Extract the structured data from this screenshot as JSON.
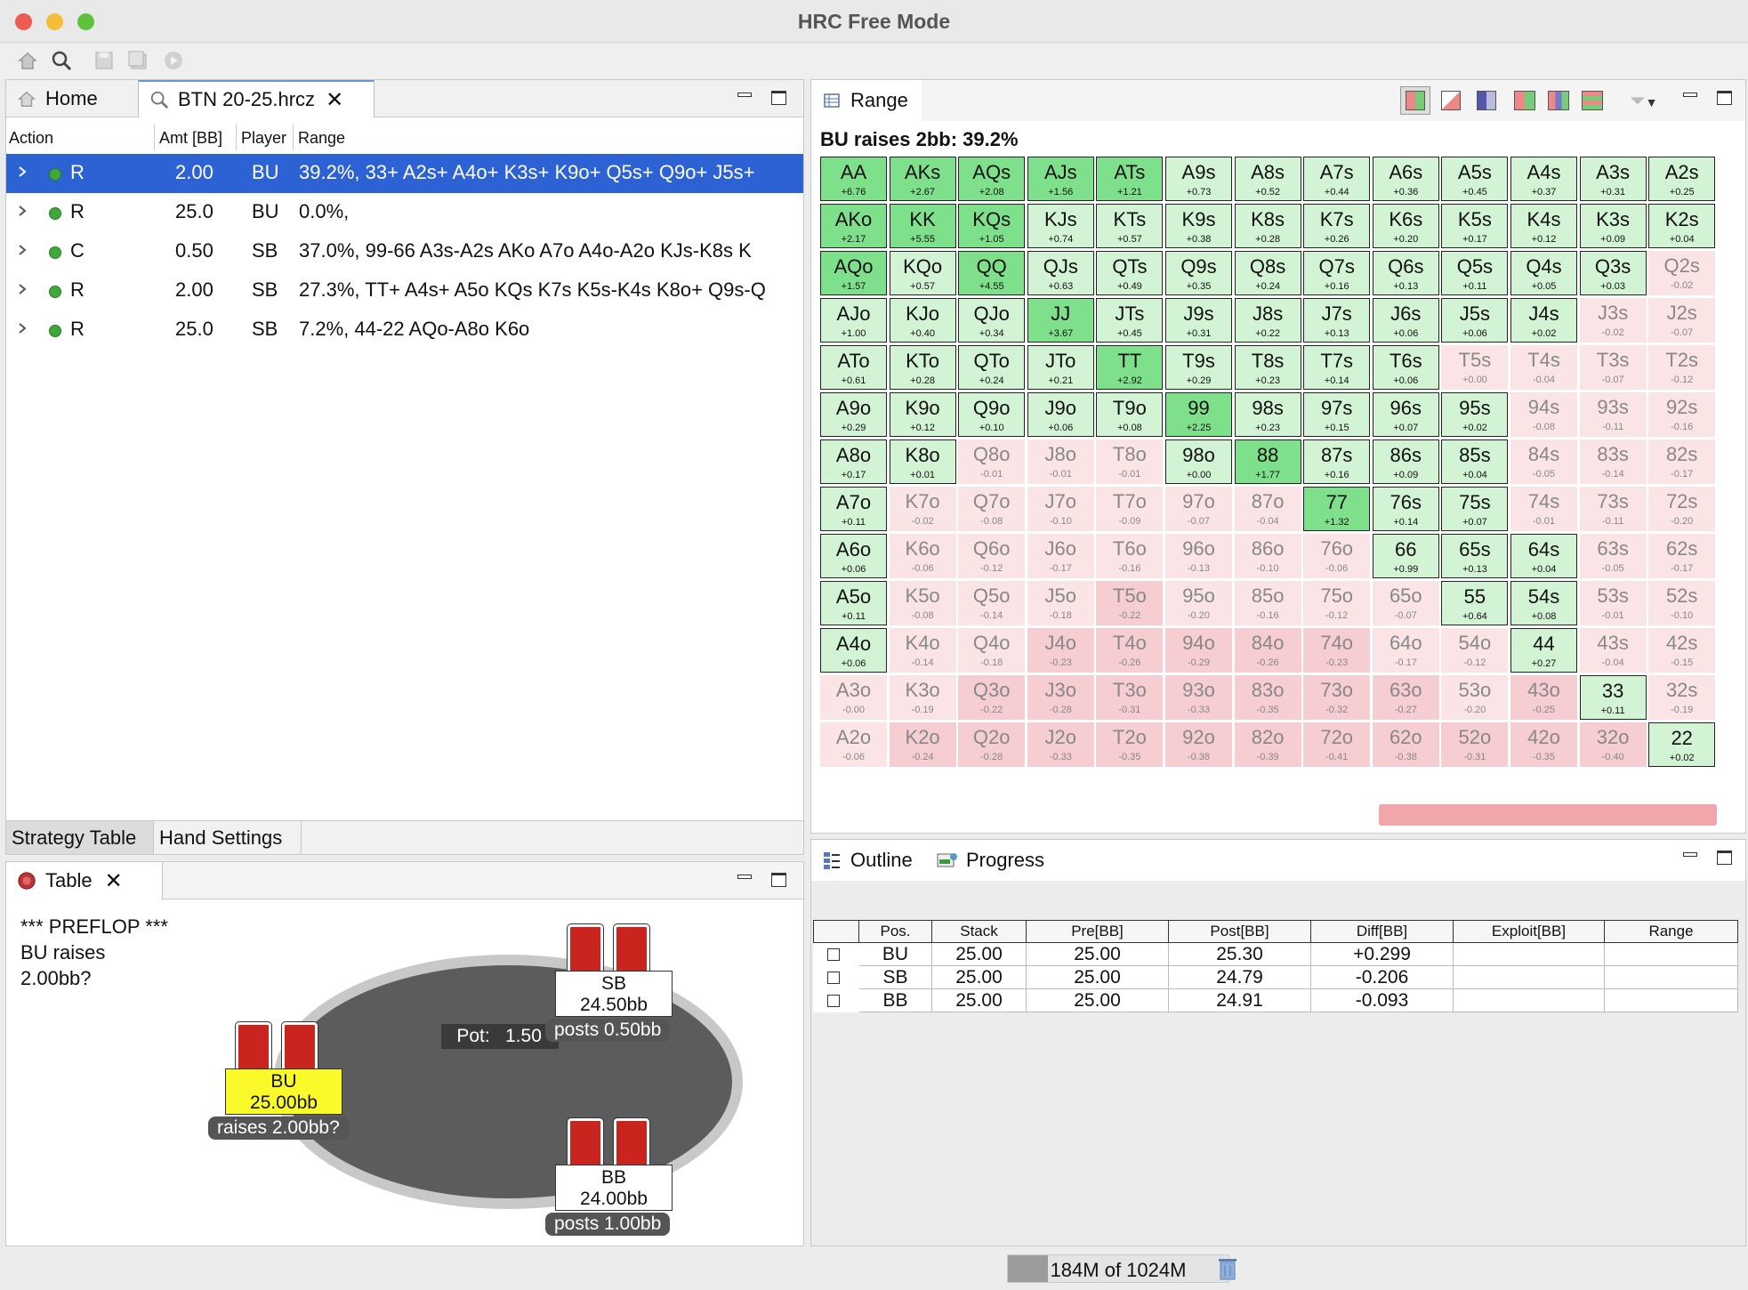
{
  "window": {
    "title": "HRC Free Mode"
  },
  "top_left_pane": {
    "tabs": [
      {
        "label": "Home"
      },
      {
        "label": "BTN 20-25.hrcz"
      }
    ],
    "columns": [
      "Action",
      "Amt [BB]",
      "Player",
      "Range"
    ],
    "rows": [
      {
        "action": "R",
        "amt": "2.00",
        "player": "BU",
        "range": "39.2%, 33+ A2s+ A4o+ K3s+ K9o+ Q5s+ Q9o+ J5s+",
        "selected": true
      },
      {
        "action": "R",
        "amt": "25.0",
        "player": "BU",
        "range": "0.0%,",
        "selected": false
      },
      {
        "action": "C",
        "amt": "0.50",
        "player": "SB",
        "range": "37.0%, 99-66 A3s-A2s AKo A7o A4o-A2o KJs-K8s K",
        "selected": false
      },
      {
        "action": "R",
        "amt": "2.00",
        "player": "SB",
        "range": "27.3%, TT+ A4s+ A5o KQs K7s K5s-K4s K8o+ Q9s-Q",
        "selected": false
      },
      {
        "action": "R",
        "amt": "25.0",
        "player": "SB",
        "range": "7.2%, 44-22 AQo-A8o K6o",
        "selected": false
      }
    ],
    "bottom_tabs": [
      "Strategy Table",
      "Hand Settings"
    ]
  },
  "range_pane": {
    "tab": "Range",
    "headline": "BU raises 2bb: 39.2%",
    "hands": [
      [
        "AA",
        "AKs",
        "AQs",
        "AJs",
        "ATs",
        "A9s",
        "A8s",
        "A7s",
        "A6s",
        "A5s",
        "A4s",
        "A3s",
        "A2s"
      ],
      [
        "AKo",
        "KK",
        "KQs",
        "KJs",
        "KTs",
        "K9s",
        "K8s",
        "K7s",
        "K6s",
        "K5s",
        "K4s",
        "K3s",
        "K2s"
      ],
      [
        "AQo",
        "KQo",
        "QQ",
        "QJs",
        "QTs",
        "Q9s",
        "Q8s",
        "Q7s",
        "Q6s",
        "Q5s",
        "Q4s",
        "Q3s",
        "Q2s"
      ],
      [
        "AJo",
        "KJo",
        "QJo",
        "JJ",
        "JTs",
        "J9s",
        "J8s",
        "J7s",
        "J6s",
        "J5s",
        "J4s",
        "J3s",
        "J2s"
      ],
      [
        "ATo",
        "KTo",
        "QTo",
        "JTo",
        "TT",
        "T9s",
        "T8s",
        "T7s",
        "T6s",
        "T5s",
        "T4s",
        "T3s",
        "T2s"
      ],
      [
        "A9o",
        "K9o",
        "Q9o",
        "J9o",
        "T9o",
        "99",
        "98s",
        "97s",
        "96s",
        "95s",
        "94s",
        "93s",
        "92s"
      ],
      [
        "A8o",
        "K8o",
        "Q8o",
        "J8o",
        "T8o",
        "98o",
        "88",
        "87s",
        "86s",
        "85s",
        "84s",
        "83s",
        "82s"
      ],
      [
        "A7o",
        "K7o",
        "Q7o",
        "J7o",
        "T7o",
        "97o",
        "87o",
        "77",
        "76s",
        "75s",
        "74s",
        "73s",
        "72s"
      ],
      [
        "A6o",
        "K6o",
        "Q6o",
        "J6o",
        "T6o",
        "96o",
        "86o",
        "76o",
        "66",
        "65s",
        "64s",
        "63s",
        "62s"
      ],
      [
        "A5o",
        "K5o",
        "Q5o",
        "J5o",
        "T5o",
        "95o",
        "85o",
        "75o",
        "65o",
        "55",
        "54s",
        "53s",
        "52s"
      ],
      [
        "A4o",
        "K4o",
        "Q4o",
        "J4o",
        "T4o",
        "94o",
        "84o",
        "74o",
        "64o",
        "54o",
        "44",
        "43s",
        "42s"
      ],
      [
        "A3o",
        "K3o",
        "Q3o",
        "J3o",
        "T3o",
        "93o",
        "83o",
        "73o",
        "63o",
        "53o",
        "43o",
        "33",
        "32s"
      ],
      [
        "A2o",
        "K2o",
        "Q2o",
        "J2o",
        "T2o",
        "92o",
        "82o",
        "72o",
        "62o",
        "52o",
        "42o",
        "32o",
        "22"
      ]
    ],
    "ev": [
      [
        "+6.76",
        "+2.67",
        "+2.08",
        "+1.56",
        "+1.21",
        "+0.73",
        "+0.52",
        "+0.44",
        "+0.36",
        "+0.45",
        "+0.37",
        "+0.31",
        "+0.25"
      ],
      [
        "+2.17",
        "+5.55",
        "+1.05",
        "+0.74",
        "+0.57",
        "+0.38",
        "+0.28",
        "+0.26",
        "+0.20",
        "+0.17",
        "+0.12",
        "+0.09",
        "+0.04"
      ],
      [
        "+1.57",
        "+0.57",
        "+4.55",
        "+0.63",
        "+0.49",
        "+0.35",
        "+0.24",
        "+0.16",
        "+0.13",
        "+0.11",
        "+0.05",
        "+0.03",
        "-0.02"
      ],
      [
        "+1.00",
        "+0.40",
        "+0.34",
        "+3.67",
        "+0.45",
        "+0.31",
        "+0.22",
        "+0.13",
        "+0.06",
        "+0.06",
        "+0.02",
        "-0.02",
        "-0.07"
      ],
      [
        "+0.61",
        "+0.28",
        "+0.24",
        "+0.21",
        "+2.92",
        "+0.29",
        "+0.23",
        "+0.14",
        "+0.06",
        "+0.00",
        "-0.04",
        "-0.07",
        "-0.12"
      ],
      [
        "+0.29",
        "+0.12",
        "+0.10",
        "+0.06",
        "+0.08",
        "+2.25",
        "+0.23",
        "+0.15",
        "+0.07",
        "+0.02",
        "-0.08",
        "-0.11",
        "-0.16"
      ],
      [
        "+0.17",
        "+0.01",
        "-0.01",
        "-0.01",
        "-0.01",
        "+0.00",
        "+1.77",
        "+0.16",
        "+0.09",
        "+0.04",
        "-0.05",
        "-0.14",
        "-0.17"
      ],
      [
        "+0.11",
        "-0.02",
        "-0.08",
        "-0.10",
        "-0.09",
        "-0.07",
        "-0.04",
        "+1.32",
        "+0.14",
        "+0.07",
        "-0.01",
        "-0.11",
        "-0.20"
      ],
      [
        "+0.06",
        "-0.06",
        "-0.12",
        "-0.17",
        "-0.16",
        "-0.13",
        "-0.10",
        "-0.06",
        "+0.99",
        "+0.13",
        "+0.04",
        "-0.05",
        "-0.17"
      ],
      [
        "+0.11",
        "-0.08",
        "-0.14",
        "-0.18",
        "-0.22",
        "-0.20",
        "-0.16",
        "-0.12",
        "-0.07",
        "+0.64",
        "+0.08",
        "-0.01",
        "-0.10"
      ],
      [
        "+0.06",
        "-0.14",
        "-0.18",
        "-0.23",
        "-0.26",
        "-0.29",
        "-0.26",
        "-0.23",
        "-0.17",
        "-0.12",
        "+0.27",
        "-0.04",
        "-0.15"
      ],
      [
        "-0.00",
        "-0.19",
        "-0.22",
        "-0.28",
        "-0.31",
        "-0.33",
        "-0.35",
        "-0.32",
        "-0.27",
        "-0.20",
        "-0.25",
        "+0.11",
        "-0.19"
      ],
      [
        "-0.06",
        "-0.24",
        "-0.28",
        "-0.33",
        "-0.35",
        "-0.38",
        "-0.39",
        "-0.41",
        "-0.38",
        "-0.31",
        "-0.35",
        "-0.40",
        "+0.02"
      ]
    ],
    "raise_mask": [
      [
        1,
        1,
        1,
        1,
        1,
        1,
        1,
        1,
        1,
        1,
        1,
        1,
        1
      ],
      [
        1,
        1,
        1,
        1,
        1,
        1,
        1,
        1,
        1,
        1,
        1,
        1,
        1
      ],
      [
        1,
        1,
        1,
        1,
        1,
        1,
        1,
        1,
        1,
        1,
        1,
        1,
        0
      ],
      [
        1,
        1,
        1,
        1,
        1,
        1,
        1,
        1,
        1,
        1,
        1,
        0,
        0
      ],
      [
        1,
        1,
        1,
        1,
        1,
        1,
        1,
        1,
        1,
        0,
        0,
        0,
        0
      ],
      [
        1,
        1,
        1,
        1,
        1,
        1,
        1,
        1,
        1,
        1,
        0,
        0,
        0
      ],
      [
        1,
        1,
        0,
        0,
        0,
        1,
        1,
        1,
        1,
        1,
        0,
        0,
        0
      ],
      [
        1,
        0,
        0,
        0,
        0,
        0,
        0,
        1,
        1,
        1,
        0,
        0,
        0
      ],
      [
        1,
        0,
        0,
        0,
        0,
        0,
        0,
        0,
        1,
        1,
        1,
        0,
        0
      ],
      [
        1,
        0,
        0,
        0,
        0,
        0,
        0,
        0,
        0,
        1,
        1,
        0,
        0
      ],
      [
        1,
        0,
        0,
        0,
        0,
        0,
        0,
        0,
        0,
        0,
        1,
        0,
        0
      ],
      [
        0,
        0,
        0,
        0,
        0,
        0,
        0,
        0,
        0,
        0,
        0,
        1,
        0
      ],
      [
        0,
        0,
        0,
        0,
        0,
        0,
        0,
        0,
        0,
        0,
        0,
        0,
        1
      ]
    ],
    "colors": {
      "raise": "#7fe08c",
      "raise_light": "#d2f3d4",
      "fold": "#fbe4e6",
      "fold_dark": "#f6cdd1"
    }
  },
  "table_pane": {
    "tab": "Table",
    "log": [
      "*** PREFLOP ***",
      "BU raises",
      "2.00bb?"
    ],
    "pot_label": "Pot:",
    "pot_value": "1.50",
    "players": [
      {
        "pos": "SB",
        "stack": "24.50bb",
        "action": "posts 0.50bb",
        "color": "#ffffff"
      },
      {
        "pos": "BU",
        "stack": "25.00bb",
        "action": "raises 2.00bb?",
        "color": "#fafa2a"
      },
      {
        "pos": "BB",
        "stack": "24.00bb",
        "action": "posts 1.00bb",
        "color": "#ffffff"
      }
    ]
  },
  "outline_pane": {
    "tabs": [
      "Outline",
      "Progress"
    ],
    "columns": [
      "Pos.",
      "Stack",
      "Pre[BB]",
      "Post[BB]",
      "Diff[BB]",
      "Exploit[BB]",
      "Range"
    ],
    "rows": [
      {
        "pos": "BU",
        "stack": "25.00",
        "pre": "25.00",
        "post": "25.30",
        "diff": "+0.299",
        "exploit": "",
        "range": ""
      },
      {
        "pos": "SB",
        "stack": "25.00",
        "pre": "25.00",
        "post": "24.79",
        "diff": "-0.206",
        "exploit": "",
        "range": ""
      },
      {
        "pos": "BB",
        "stack": "25.00",
        "pre": "25.00",
        "post": "24.91",
        "diff": "-0.093",
        "exploit": "",
        "range": ""
      }
    ]
  },
  "status": {
    "memory": "184M of 1024M",
    "memory_used_fraction": 0.18
  }
}
